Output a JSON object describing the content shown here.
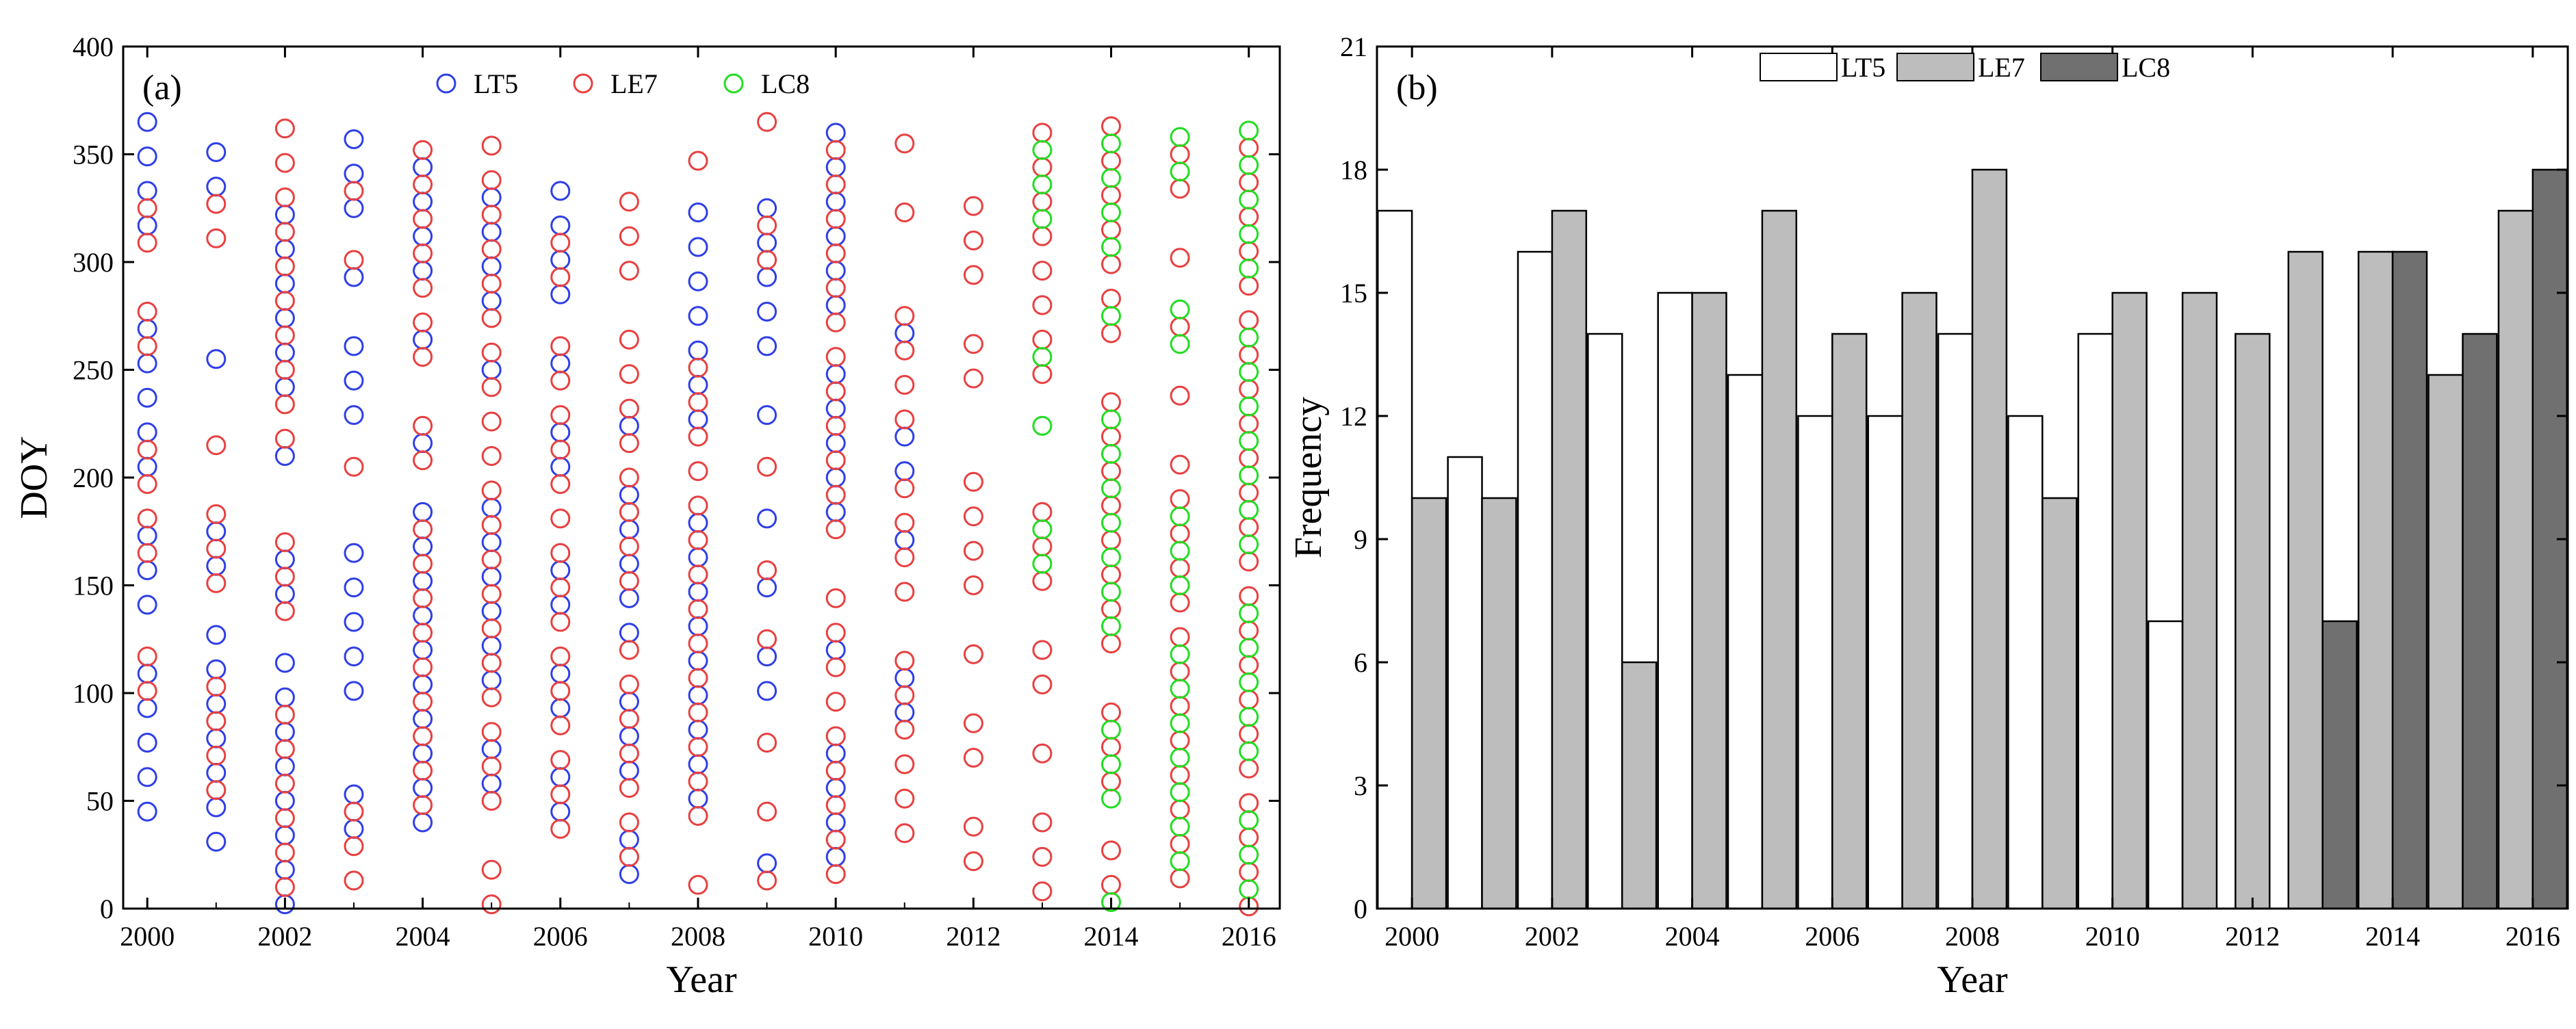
{
  "panel_a": {
    "panel_label": "(a)",
    "legend_items": [
      "LT5",
      "LE7",
      "LC8"
    ]
  },
  "panel_b": {
    "panel_label": "(b)",
    "legend_items": [
      "LT5",
      "LE7",
      "LC8"
    ]
  },
  "chart_data": [
    {
      "type": "scatter",
      "title": "(a)",
      "xlabel": "Year",
      "ylabel": "DOY",
      "xlim": [
        1999.65,
        2016.45
      ],
      "ylim": [
        0,
        400
      ],
      "xticks": [
        2000,
        2002,
        2004,
        2006,
        2008,
        2010,
        2012,
        2014,
        2016
      ],
      "yticks": [
        0,
        50,
        100,
        150,
        200,
        250,
        300,
        350,
        400
      ],
      "legend_position": "top-center",
      "series": [
        {
          "name": "LT5",
          "color": "#2f3fe6",
          "points": {
            "2000": [
              45,
              61,
              77,
              93,
              109,
              141,
              157,
              173,
              205,
              221,
              237,
              253,
              269,
              317,
              333,
              349,
              365
            ],
            "2001": [
              31,
              47,
              63,
              79,
              95,
              111,
              127,
              159,
              175,
              255,
              335,
              351
            ],
            "2002": [
              2,
              18,
              34,
              50,
              66,
              82,
              98,
              114,
              146,
              162,
              210,
              242,
              258,
              274,
              290,
              306,
              322
            ],
            "2003": [
              37,
              53,
              101,
              117,
              133,
              149,
              165,
              229,
              245,
              261,
              293,
              325,
              341,
              357
            ],
            "2004": [
              40,
              56,
              72,
              88,
              104,
              120,
              136,
              152,
              168,
              184,
              216,
              264,
              296,
              312,
              328,
              344
            ],
            "2005": [
              58,
              74,
              106,
              122,
              138,
              154,
              170,
              186,
              250,
              282,
              298,
              314,
              330
            ],
            "2006": [
              45,
              61,
              93,
              109,
              141,
              157,
              205,
              221,
              253,
              285,
              301,
              317,
              333
            ],
            "2007": [
              16,
              32,
              64,
              80,
              96,
              128,
              144,
              160,
              176,
              192,
              224
            ],
            "2008": [
              51,
              67,
              83,
              99,
              115,
              131,
              147,
              163,
              179,
              227,
              243,
              259,
              275,
              291,
              307,
              323
            ],
            "2009": [
              21,
              101,
              117,
              149,
              181,
              229,
              261,
              277,
              293,
              309,
              325
            ],
            "2010": [
              24,
              40,
              56,
              72,
              120,
              184,
              200,
              216,
              232,
              248,
              280,
              296,
              312,
              328,
              344,
              360
            ],
            "2011": [
              91,
              107,
              171,
              203,
              219,
              267
            ]
          }
        },
        {
          "name": "LE7",
          "color": "#e84040",
          "points": {
            "2000": [
              101,
              117,
              165,
              181,
              197,
              213,
              261,
              277,
              309,
              325
            ],
            "2001": [
              55,
              71,
              87,
              103,
              151,
              167,
              183,
              215,
              311,
              327
            ],
            "2002": [
              10,
              26,
              42,
              58,
              74,
              90,
              138,
              154,
              170,
              218,
              234,
              250,
              266,
              282,
              298,
              314,
              330,
              346,
              362
            ],
            "2003": [
              13,
              29,
              45,
              205,
              301,
              333
            ],
            "2004": [
              48,
              64,
              80,
              96,
              112,
              128,
              144,
              160,
              176,
              208,
              224,
              256,
              272,
              288,
              304,
              320,
              336,
              352
            ],
            "2005": [
              2,
              18,
              50,
              66,
              82,
              98,
              114,
              130,
              146,
              162,
              178,
              194,
              210,
              226,
              242,
              258,
              274,
              290,
              306,
              322,
              338,
              354
            ],
            "2006": [
              37,
              53,
              69,
              85,
              101,
              117,
              133,
              149,
              165,
              181,
              197,
              213,
              229,
              245,
              261,
              293,
              309
            ],
            "2007": [
              24,
              40,
              56,
              72,
              88,
              104,
              120,
              152,
              168,
              184,
              200,
              216,
              232,
              248,
              264,
              296,
              312,
              328
            ],
            "2008": [
              11,
              43,
              59,
              75,
              91,
              107,
              123,
              139,
              155,
              171,
              187,
              203,
              219,
              235,
              251,
              347
            ],
            "2009": [
              13,
              45,
              77,
              125,
              157,
              205,
              301,
              317,
              365
            ],
            "2010": [
              16,
              32,
              48,
              64,
              80,
              96,
              112,
              128,
              144,
              176,
              192,
              208,
              224,
              240,
              256,
              272,
              288,
              304,
              320,
              336,
              352
            ],
            "2011": [
              35,
              51,
              67,
              83,
              99,
              115,
              147,
              163,
              179,
              195,
              227,
              243,
              259,
              275,
              323,
              355
            ],
            "2012": [
              22,
              38,
              70,
              86,
              118,
              150,
              166,
              182,
              198,
              246,
              262,
              294,
              310,
              326
            ],
            "2013": [
              8,
              24,
              40,
              72,
              104,
              120,
              152,
              168,
              184,
              248,
              264,
              280,
              296,
              312,
              328,
              344,
              360
            ],
            "2014": [
              11,
              27,
              59,
              75,
              91,
              123,
              139,
              155,
              171,
              187,
              203,
              219,
              235,
              267,
              283,
              299,
              315,
              331,
              347,
              363
            ],
            "2015": [
              14,
              30,
              46,
              62,
              78,
              94,
              110,
              126,
              142,
              158,
              174,
              190,
              206,
              238,
              270,
              302,
              334,
              350
            ],
            "2016": [
              1,
              17,
              33,
              49,
              65,
              81,
              97,
              113,
              129,
              145,
              161,
              177,
              193,
              209,
              225,
              241,
              257,
              273,
              289,
              305,
              321,
              337,
              353
            ]
          }
        },
        {
          "name": "LC8",
          "color": "#22dd22",
          "points": {
            "2013": [
              160,
              176,
              224,
              256,
              320,
              336,
              352
            ],
            "2014": [
              3,
              51,
              67,
              83,
              131,
              147,
              163,
              179,
              195,
              211,
              227,
              275,
              307,
              323,
              339,
              355
            ],
            "2015": [
              22,
              38,
              54,
              70,
              86,
              102,
              118,
              150,
              166,
              182,
              262,
              278,
              342,
              358
            ],
            "2016": [
              9,
              25,
              41,
              73,
              89,
              105,
              121,
              137,
              169,
              185,
              201,
              217,
              233,
              249,
              265,
              297,
              313,
              329,
              345,
              361
            ]
          }
        }
      ]
    },
    {
      "type": "bar",
      "title": "(b)",
      "xlabel": "Year",
      "ylabel": "Frequency",
      "categories": [
        "2000",
        "2001",
        "2002",
        "2003",
        "2004",
        "2005",
        "2006",
        "2007",
        "2008",
        "2009",
        "2010",
        "2011",
        "2012",
        "2013",
        "2014",
        "2015",
        "2016"
      ],
      "xticks": [
        "2000",
        "2002",
        "2004",
        "2006",
        "2008",
        "2010",
        "2012",
        "2014",
        "2016"
      ],
      "ylim": [
        0,
        21
      ],
      "yticks": [
        0,
        3,
        6,
        9,
        12,
        15,
        18,
        21
      ],
      "legend_position": "top-center",
      "series": [
        {
          "name": "LT5",
          "color": "#ffffff",
          "values": [
            17,
            11,
            16,
            14,
            15,
            13,
            12,
            12,
            14,
            12,
            14,
            7,
            0,
            0,
            0,
            0,
            0
          ]
        },
        {
          "name": "LE7",
          "color": "#bdbdbd",
          "values": [
            10,
            10,
            17,
            6,
            15,
            17,
            14,
            15,
            18,
            10,
            15,
            15,
            14,
            16,
            16,
            13,
            17
          ]
        },
        {
          "name": "LC8",
          "color": "#707070",
          "values": [
            0,
            0,
            0,
            0,
            0,
            0,
            0,
            0,
            0,
            0,
            0,
            0,
            0,
            7,
            16,
            14,
            18
          ]
        }
      ]
    }
  ]
}
